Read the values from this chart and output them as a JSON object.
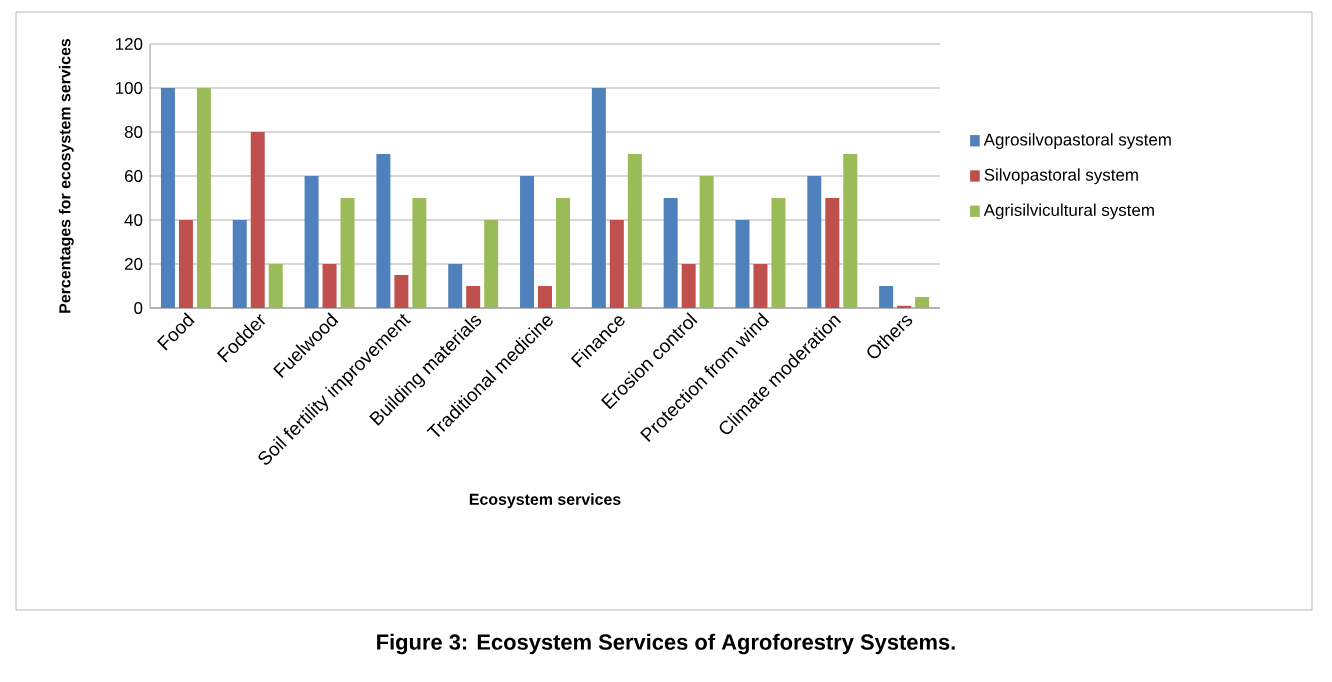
{
  "chart_data": {
    "type": "bar",
    "title": "Figure 3: Ecosystem Services of Agroforestry Systems.",
    "xlabel": "Ecosystem services",
    "ylabel": "Percentages for ecosystem services",
    "categories": [
      "Food",
      "Fodder",
      "Fuelwood",
      "Soil fertility improvement",
      "Building materials",
      "Traditional medicine",
      "Finance",
      "Erosion control",
      "Protection from wind",
      "Climate moderation",
      "Others"
    ],
    "series": [
      {
        "name": "Agrosilvopastoral system",
        "color": "#4f81bd",
        "values": [
          100,
          40,
          60,
          70,
          20,
          60,
          100,
          50,
          40,
          60,
          10
        ]
      },
      {
        "name": "Silvopastoral system",
        "color": "#c0504d",
        "values": [
          40,
          80,
          20,
          15,
          10,
          10,
          40,
          20,
          20,
          50,
          1
        ]
      },
      {
        "name": "Agrisilvicultural system",
        "color": "#9bbb59",
        "values": [
          100,
          20,
          50,
          50,
          40,
          50,
          70,
          60,
          50,
          70,
          5
        ]
      }
    ],
    "ylim": [
      0,
      120
    ],
    "yticks": [
      0,
      20,
      40,
      60,
      80,
      100,
      120
    ],
    "grid": "y",
    "legend": "right"
  }
}
